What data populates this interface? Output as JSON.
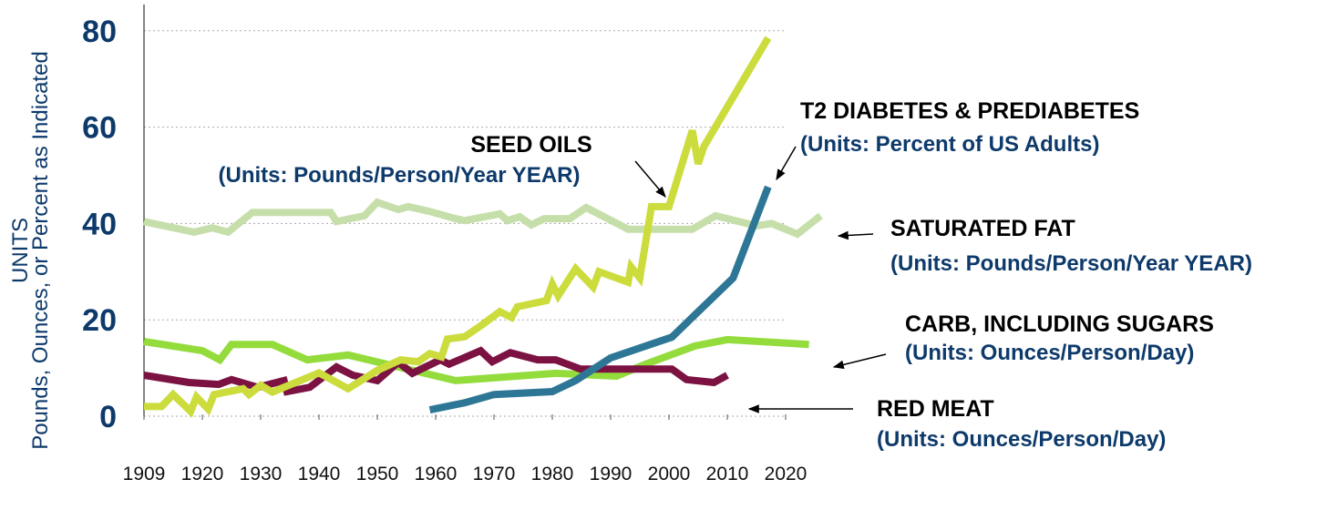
{
  "chart_data": {
    "type": "line",
    "title": "",
    "xlabel": "",
    "ylabel": [
      "UNITS",
      "Pounds, Ounces, or Percent as Indicated"
    ],
    "ylim": [
      0,
      85
    ],
    "xlim": [
      1909,
      2026
    ],
    "grid": true,
    "y_ticks": [
      "0",
      "20",
      "40",
      "60",
      "80"
    ],
    "y_tick_values": [
      0,
      20,
      40,
      60,
      80
    ],
    "x_ticks": [
      "1909",
      "1920",
      "1930",
      "1940",
      "1950",
      "1960",
      "1970",
      "1980",
      "1990",
      "2000",
      "2010",
      "2020"
    ],
    "x_tick_values": [
      1910,
      1920,
      1930,
      1940,
      1950,
      1960,
      1970,
      1980,
      1990,
      2000,
      2010,
      2020
    ],
    "series": [
      {
        "name": "Saturated Fat",
        "color": "#c6dfaa",
        "x": [
          1910,
          1918.6,
          1921.7,
          1924.4,
          1928.6,
          1942,
          1943,
          1947.8,
          1950,
          1953.6,
          1955.3,
          1959,
          1963.4,
          1965,
          1971,
          1972.3,
          1974.4,
          1976.4,
          1978.6,
          1983,
          1985.8,
          1993,
          2004,
          2008,
          2015,
          2017.6,
          2022,
          2026
        ],
        "y": [
          40.4,
          38.2,
          39.1,
          38.2,
          42.3,
          42.3,
          40.4,
          41.6,
          44.4,
          42.9,
          43.5,
          42.5,
          41,
          40.6,
          42,
          40.6,
          41.4,
          39.7,
          41,
          41,
          43.3,
          38.8,
          38.8,
          41.6,
          39.5,
          40,
          37.8,
          41.6
        ]
      },
      {
        "name": "Carb, Including Sugars",
        "color": "#93dc3c",
        "x": [
          1910,
          1920,
          1923,
          1925,
          1932,
          1938,
          1945,
          1963.4,
          1980.6,
          1991,
          1996,
          2004.5,
          2010,
          2024
        ],
        "y": [
          15.5,
          13.6,
          11.7,
          14.9,
          14.9,
          11.7,
          12.7,
          7.4,
          8.9,
          8.3,
          10.8,
          14.6,
          15.9,
          14.9
        ]
      },
      {
        "name": "Red Meat",
        "color": "#7b1242",
        "x": [
          1910,
          1917.7,
          1922.8,
          1925,
          1929.5,
          1934,
          1934.5,
          1938.4,
          1943,
          1945.8,
          1950,
          1953.6,
          1956,
          1960.8,
          1962.3,
          1967.7,
          1969.7,
          1972.8,
          1977.5,
          1980.6,
          1984.8,
          2000.5,
          2003,
          2007.7,
          2010
        ],
        "y": [
          8.5,
          7,
          6.6,
          7.6,
          6,
          7.4,
          5.1,
          6,
          10.2,
          8.5,
          7.4,
          11.2,
          8.9,
          11.7,
          10.8,
          13.6,
          11.3,
          13.2,
          11.7,
          11.7,
          9.8,
          9.8,
          7.6,
          7,
          8.5
        ]
      },
      {
        "name": "Seed Oils",
        "color": "#cbdc3c",
        "x": [
          1910,
          1913,
          1915,
          1918,
          1919,
          1921,
          1922,
          1927,
          1928,
          1930,
          1932,
          1940,
          1945,
          1950,
          1954,
          1957,
          1959,
          1961,
          1962,
          1965,
          1968,
          1971,
          1973,
          1974,
          1979,
          1980,
          1981,
          1984,
          1987,
          1988,
          1993,
          1993.5,
          1995,
          1997,
          2000,
          2004,
          2005,
          2006,
          2017
        ],
        "y": [
          2,
          2,
          4.5,
          1,
          4,
          1.5,
          4.5,
          5.7,
          4.5,
          6.4,
          5,
          9,
          5.7,
          9.5,
          11.7,
          11.3,
          13,
          12.3,
          16,
          16.5,
          19,
          21.7,
          20.5,
          22.7,
          24,
          27.4,
          25,
          30.6,
          26.8,
          30,
          27.8,
          31,
          28.7,
          43.5,
          43.5,
          59.3,
          52.4,
          56,
          78.5
        ]
      },
      {
        "name": "T2 Diabetes & Prediabetes",
        "color": "#2e7696",
        "x": [
          1959,
          1965,
          1970,
          1980,
          1984,
          1990,
          2000.5,
          2011,
          2017
        ],
        "y": [
          1.3,
          2.8,
          4.5,
          5.1,
          7.4,
          12.1,
          16.4,
          28.7,
          47.6
        ]
      }
    ],
    "annotations": [
      {
        "key": "seed_oils",
        "title": "SEED OILS",
        "units": "(Units: Pounds/Person/Year YEAR)"
      },
      {
        "key": "t2_diabetes",
        "title": "T2 DIABETES & PREDIABETES",
        "units": "(Units: Percent of US Adults)"
      },
      {
        "key": "saturated_fat",
        "title": "SATURATED FAT",
        "units": "(Units: Pounds/Person/Year YEAR)"
      },
      {
        "key": "carb",
        "title": "CARB, INCLUDING SUGARS",
        "units": "(Units: Ounces/Person/Day)"
      },
      {
        "key": "red_meat",
        "title": "RED MEAT",
        "units": "(Units: Ounces/Person/Day)"
      }
    ]
  }
}
